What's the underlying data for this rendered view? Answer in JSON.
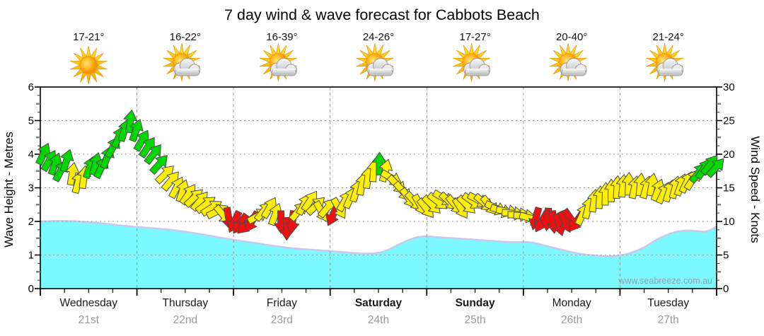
{
  "page": {
    "title": "7 day wind & wave forecast for Cabbots Beach",
    "watermark": "www.seabreeze.com.au"
  },
  "chart_data": {
    "type": "line",
    "subtype": "wind-wave-forecast",
    "title": "7 day wind & wave forecast for Cabbots Beach",
    "left_axis": {
      "label": "Wave Height - Metres",
      "min": 0,
      "max": 6,
      "tick_step": 1
    },
    "right_axis": {
      "label": "Wind Speed - Knots",
      "min": 0,
      "max": 30,
      "tick_step": 5
    },
    "grid": {
      "horizontal_dotted_at_metres": [
        1,
        2,
        3,
        4,
        5
      ],
      "vertical_dashed_at_day_bounds": true
    },
    "days": [
      {
        "name": "Wednesday",
        "date": "21st",
        "temp": "17-21°",
        "icon": "sun",
        "bold": false
      },
      {
        "name": "Thursday",
        "date": "22nd",
        "temp": "16-22°",
        "icon": "sun-cloud",
        "bold": false
      },
      {
        "name": "Friday",
        "date": "23rd",
        "temp": "16-39°",
        "icon": "sun-cloud",
        "bold": false
      },
      {
        "name": "Saturday",
        "date": "24th",
        "temp": "24-26°",
        "icon": "sun-cloud",
        "bold": true
      },
      {
        "name": "Sunday",
        "date": "25th",
        "temp": "17-27°",
        "icon": "sun-cloud",
        "bold": true
      },
      {
        "name": "Monday",
        "date": "26th",
        "temp": "20-40°",
        "icon": "sun-cloud",
        "bold": false
      },
      {
        "name": "Tuesday",
        "date": "27th",
        "temp": "21-24°",
        "icon": "sun-cloud",
        "bold": false
      }
    ],
    "wave_height_series": {
      "units": "metres",
      "x_units": "days_from_start",
      "points": [
        [
          0,
          2.0
        ],
        [
          0.2,
          2.02
        ],
        [
          0.4,
          2.0
        ],
        [
          0.6,
          1.96
        ],
        [
          0.8,
          1.89
        ],
        [
          1.0,
          1.83
        ],
        [
          1.2,
          1.79
        ],
        [
          1.4,
          1.74
        ],
        [
          1.6,
          1.65
        ],
        [
          1.8,
          1.55
        ],
        [
          2.0,
          1.45
        ],
        [
          2.2,
          1.37
        ],
        [
          2.4,
          1.28
        ],
        [
          2.6,
          1.2
        ],
        [
          2.8,
          1.16
        ],
        [
          3.0,
          1.12
        ],
        [
          3.2,
          1.07
        ],
        [
          3.4,
          1.03
        ],
        [
          3.55,
          1.08
        ],
        [
          3.7,
          1.3
        ],
        [
          3.85,
          1.5
        ],
        [
          3.97,
          1.57
        ],
        [
          4.15,
          1.52
        ],
        [
          4.4,
          1.48
        ],
        [
          4.65,
          1.42
        ],
        [
          4.9,
          1.38
        ],
        [
          5.05,
          1.4
        ],
        [
          5.2,
          1.3
        ],
        [
          5.4,
          1.15
        ],
        [
          5.6,
          1.02
        ],
        [
          5.8,
          0.97
        ],
        [
          5.95,
          0.96
        ],
        [
          6.1,
          1.04
        ],
        [
          6.25,
          1.22
        ],
        [
          6.4,
          1.5
        ],
        [
          6.55,
          1.68
        ],
        [
          6.7,
          1.74
        ],
        [
          6.8,
          1.71
        ],
        [
          6.9,
          1.68
        ],
        [
          7.0,
          1.85
        ]
      ]
    },
    "wind_arrows": {
      "format": [
        "day_fraction",
        "knots",
        "angle_deg_cw_from_up",
        "color_key"
      ],
      "points": [
        [
          0.03,
          20,
          25,
          "g"
        ],
        [
          0.09,
          19,
          30,
          "g"
        ],
        [
          0.15,
          18.5,
          20,
          "g"
        ],
        [
          0.21,
          17.5,
          28,
          "g"
        ],
        [
          0.27,
          19,
          18,
          "g"
        ],
        [
          0.33,
          17,
          10,
          "y"
        ],
        [
          0.39,
          15.8,
          15,
          "y"
        ],
        [
          0.45,
          16.5,
          8,
          "y"
        ],
        [
          0.51,
          18,
          20,
          "g"
        ],
        [
          0.57,
          18.5,
          15,
          "g"
        ],
        [
          0.63,
          18,
          25,
          "g"
        ],
        [
          0.69,
          19.5,
          20,
          "g"
        ],
        [
          0.75,
          21,
          28,
          "g"
        ],
        [
          0.81,
          22.5,
          24,
          "g"
        ],
        [
          0.87,
          23.5,
          18,
          "g"
        ],
        [
          0.93,
          24.8,
          8,
          "g"
        ],
        [
          0.99,
          23.5,
          20,
          "g"
        ],
        [
          1.05,
          22,
          30,
          "g"
        ],
        [
          1.11,
          21,
          34,
          "g"
        ],
        [
          1.17,
          20,
          38,
          "g"
        ],
        [
          1.23,
          18.5,
          42,
          "g"
        ],
        [
          1.29,
          17,
          46,
          "y"
        ],
        [
          1.35,
          16,
          40,
          "y"
        ],
        [
          1.41,
          15,
          28,
          "y"
        ],
        [
          1.47,
          14.5,
          18,
          "y"
        ],
        [
          1.53,
          14,
          34,
          "y"
        ],
        [
          1.59,
          13.5,
          46,
          "y"
        ],
        [
          1.65,
          13,
          40,
          "y"
        ],
        [
          1.71,
          12.5,
          52,
          "y"
        ],
        [
          1.77,
          12,
          58,
          "y"
        ],
        [
          1.83,
          11.5,
          64,
          "y"
        ],
        [
          1.89,
          11,
          140,
          "y"
        ],
        [
          1.95,
          10.5,
          170,
          "r"
        ],
        [
          2.01,
          10,
          205,
          "r"
        ],
        [
          2.07,
          9.7,
          215,
          "r"
        ],
        [
          2.13,
          9.5,
          225,
          "r"
        ],
        [
          2.19,
          10,
          210,
          "r"
        ],
        [
          2.25,
          10.8,
          60,
          "y"
        ],
        [
          2.31,
          11.5,
          40,
          "y"
        ],
        [
          2.37,
          12,
          30,
          "y"
        ],
        [
          2.43,
          11,
          20,
          "y"
        ],
        [
          2.49,
          10,
          180,
          "r"
        ],
        [
          2.55,
          9,
          180,
          "r"
        ],
        [
          2.61,
          10,
          185,
          "r"
        ],
        [
          2.67,
          11.5,
          40,
          "y"
        ],
        [
          2.73,
          12.5,
          28,
          "y"
        ],
        [
          2.79,
          13,
          34,
          "y"
        ],
        [
          2.85,
          12.3,
          46,
          "y"
        ],
        [
          2.91,
          11.5,
          150,
          "y"
        ],
        [
          2.97,
          12,
          40,
          "y"
        ],
        [
          3.03,
          11,
          205,
          "r"
        ],
        [
          3.09,
          12,
          150,
          "y"
        ],
        [
          3.15,
          13,
          30,
          "y"
        ],
        [
          3.21,
          13.5,
          24,
          "y"
        ],
        [
          3.27,
          14.5,
          18,
          "y"
        ],
        [
          3.33,
          15.5,
          12,
          "y"
        ],
        [
          3.39,
          16.5,
          8,
          "y"
        ],
        [
          3.45,
          17.5,
          5,
          "y"
        ],
        [
          3.51,
          18.5,
          0,
          "g"
        ],
        [
          3.57,
          17.5,
          15,
          "y"
        ],
        [
          3.63,
          16.5,
          120,
          "y"
        ],
        [
          3.69,
          15.5,
          135,
          "y"
        ],
        [
          3.75,
          14.5,
          140,
          "y"
        ],
        [
          3.81,
          13.5,
          145,
          "y"
        ],
        [
          3.87,
          13,
          138,
          "y"
        ],
        [
          3.93,
          12.5,
          150,
          "y"
        ],
        [
          3.99,
          12,
          142,
          "y"
        ],
        [
          4.05,
          12.5,
          135,
          "y"
        ],
        [
          4.11,
          13,
          128,
          "y"
        ],
        [
          4.17,
          13.5,
          120,
          "y"
        ],
        [
          4.23,
          13,
          132,
          "y"
        ],
        [
          4.29,
          12.5,
          140,
          "y"
        ],
        [
          4.35,
          12,
          148,
          "y"
        ],
        [
          4.41,
          12.5,
          135,
          "y"
        ],
        [
          4.47,
          13,
          125,
          "y"
        ],
        [
          4.53,
          13.2,
          118,
          "y"
        ],
        [
          4.59,
          12.8,
          130,
          "y"
        ],
        [
          4.65,
          12.4,
          140,
          "y"
        ],
        [
          4.71,
          12,
          115,
          "y"
        ],
        [
          4.77,
          11.6,
          108,
          "y"
        ],
        [
          4.83,
          11.5,
          100,
          "y"
        ],
        [
          4.89,
          11.2,
          95,
          "y"
        ],
        [
          4.95,
          11,
          90,
          "y"
        ],
        [
          5.01,
          10.8,
          95,
          "y"
        ],
        [
          5.07,
          10.5,
          105,
          "y"
        ],
        [
          5.13,
          10.5,
          195,
          "r"
        ],
        [
          5.19,
          10,
          210,
          "r"
        ],
        [
          5.25,
          10.4,
          185,
          "r"
        ],
        [
          5.31,
          10,
          175,
          "r"
        ],
        [
          5.37,
          9.6,
          165,
          "r"
        ],
        [
          5.43,
          10,
          155,
          "r"
        ],
        [
          5.49,
          10.4,
          145,
          "r"
        ],
        [
          5.55,
          10,
          215,
          "r"
        ],
        [
          5.61,
          11,
          25,
          "y"
        ],
        [
          5.67,
          12,
          15,
          "y"
        ],
        [
          5.73,
          13,
          8,
          "y"
        ],
        [
          5.79,
          13.5,
          4,
          "y"
        ],
        [
          5.85,
          14,
          2,
          "y"
        ],
        [
          5.91,
          14.5,
          0,
          "y"
        ],
        [
          5.97,
          15,
          3,
          "y"
        ],
        [
          6.03,
          15.2,
          6,
          "y"
        ],
        [
          6.09,
          15.5,
          2,
          "y"
        ],
        [
          6.15,
          15,
          12,
          "y"
        ],
        [
          6.21,
          15.4,
          6,
          "y"
        ],
        [
          6.27,
          15,
          16,
          "y"
        ],
        [
          6.33,
          15.4,
          10,
          "y"
        ],
        [
          6.39,
          14.6,
          20,
          "y"
        ],
        [
          6.45,
          14.2,
          26,
          "y"
        ],
        [
          6.51,
          14.5,
          18,
          "y"
        ],
        [
          6.57,
          15,
          14,
          "y"
        ],
        [
          6.63,
          15.4,
          20,
          "y"
        ],
        [
          6.69,
          15.8,
          26,
          "y"
        ],
        [
          6.75,
          16.2,
          32,
          "y"
        ],
        [
          6.81,
          17.2,
          38,
          "g"
        ],
        [
          6.87,
          17.8,
          34,
          "g"
        ],
        [
          6.93,
          18.4,
          38,
          "g"
        ],
        [
          6.99,
          18,
          42,
          "g"
        ]
      ]
    },
    "colors": {
      "arrow_green": "#00d800",
      "arrow_yellow": "#fff000",
      "arrow_red": "#ee1111",
      "arrow_outline": "#4a4a4a",
      "wave_fill": "#7cf8ff",
      "wave_edge": "#c8c8ec",
      "grid": "#9a9a9a",
      "axis": "#000000",
      "day_text": "#1a1a1a",
      "date_text": "#999999",
      "watermark_text": "#8fa0b5"
    }
  }
}
